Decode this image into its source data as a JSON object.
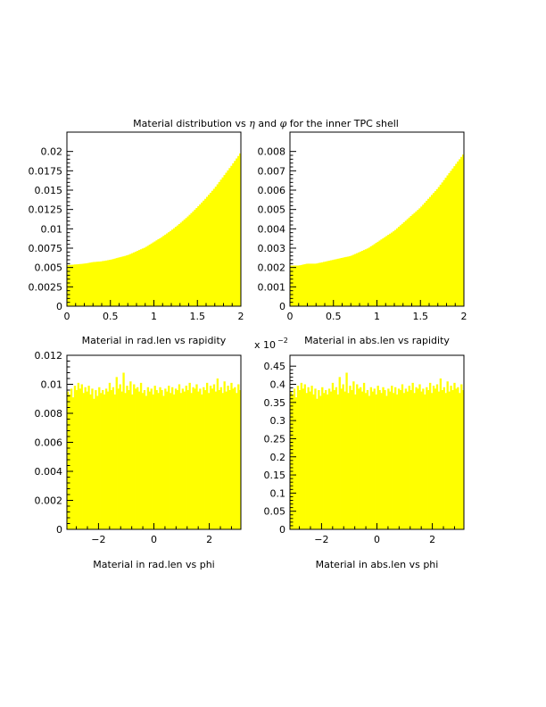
{
  "page": {
    "title_parts": [
      "Material distribution vs ",
      "η",
      " and ",
      "φ",
      " for the inner TPC shell"
    ]
  },
  "colors": {
    "fill": "#ffff00",
    "axis": "#000000",
    "background": "#ffffff"
  },
  "chart_data": [
    {
      "type": "area",
      "id": "radlen-rapidity",
      "xlabel": "Material in rad.len vs rapidity",
      "xlim": [
        0,
        2
      ],
      "ylim": [
        0,
        0.0225
      ],
      "x_ticks": [
        0,
        0.5,
        1,
        1.5,
        2
      ],
      "x_tick_labels": [
        "0",
        "0.5",
        "1",
        "1.5",
        "2"
      ],
      "y_ticks": [
        0,
        0.0025,
        0.005,
        0.0075,
        0.01,
        0.0125,
        0.015,
        0.0175,
        0.02
      ],
      "y_tick_labels": [
        "0",
        "0.0025",
        "0.005",
        "0.0075",
        "0.01",
        "0.0125",
        "0.015",
        "0.0175",
        "0.02"
      ],
      "x": [
        0,
        0.1,
        0.2,
        0.3,
        0.4,
        0.5,
        0.6,
        0.7,
        0.8,
        0.9,
        1.0,
        1.1,
        1.2,
        1.3,
        1.4,
        1.5,
        1.6,
        1.7,
        1.8,
        1.9,
        2.0
      ],
      "values": [
        0.0053,
        0.0054,
        0.0055,
        0.0057,
        0.0058,
        0.006,
        0.0063,
        0.0066,
        0.0071,
        0.0076,
        0.0083,
        0.009,
        0.0098,
        0.0107,
        0.0117,
        0.0128,
        0.014,
        0.0153,
        0.0168,
        0.0183,
        0.0199
      ],
      "exponent_label": ""
    },
    {
      "type": "area",
      "id": "abslen-rapidity",
      "xlabel": "Material in abs.len vs rapidity",
      "xlim": [
        0,
        2
      ],
      "ylim": [
        0,
        0.009
      ],
      "x_ticks": [
        0,
        0.5,
        1,
        1.5,
        2
      ],
      "x_tick_labels": [
        "0",
        "0.5",
        "1",
        "1.5",
        "2"
      ],
      "y_ticks": [
        0,
        0.001,
        0.002,
        0.003,
        0.004,
        0.005,
        0.006,
        0.007,
        0.008
      ],
      "y_tick_labels": [
        "0",
        "0.001",
        "0.002",
        "0.003",
        "0.004",
        "0.005",
        "0.006",
        "0.007",
        "0.008"
      ],
      "x": [
        0,
        0.1,
        0.2,
        0.3,
        0.4,
        0.5,
        0.6,
        0.7,
        0.8,
        0.9,
        1.0,
        1.1,
        1.2,
        1.3,
        1.4,
        1.5,
        1.6,
        1.7,
        1.8,
        1.9,
        2.0
      ],
      "values": [
        0.0021,
        0.0021,
        0.0022,
        0.0022,
        0.0023,
        0.0024,
        0.0025,
        0.0026,
        0.0028,
        0.003,
        0.0033,
        0.0036,
        0.0039,
        0.0043,
        0.0047,
        0.0051,
        0.0056,
        0.0061,
        0.0067,
        0.0073,
        0.0079
      ],
      "exponent_label": ""
    },
    {
      "type": "bar",
      "id": "radlen-phi",
      "xlabel": "Material in rad.len vs phi",
      "xlim": [
        -3.14,
        3.14
      ],
      "ylim": [
        0,
        0.012
      ],
      "x_ticks": [
        -2,
        0,
        2
      ],
      "x_tick_labels": [
        "−2",
        "0",
        "2"
      ],
      "y_ticks": [
        0,
        0.002,
        0.004,
        0.006,
        0.008,
        0.01,
        0.012
      ],
      "y_tick_labels": [
        "0",
        "0.002",
        "0.004",
        "0.006",
        "0.008",
        "0.01",
        "0.012"
      ],
      "values": [
        0.0095,
        0.0093,
        0.0097,
        0.0091,
        0.0099,
        0.0096,
        0.0101,
        0.0097,
        0.01,
        0.0094,
        0.0098,
        0.0095,
        0.0099,
        0.0093,
        0.0097,
        0.009,
        0.0096,
        0.0092,
        0.0098,
        0.0094,
        0.0096,
        0.0093,
        0.0097,
        0.0095,
        0.0101,
        0.0096,
        0.0098,
        0.0093,
        0.0105,
        0.0097,
        0.01,
        0.0095,
        0.0108,
        0.0094,
        0.0099,
        0.0096,
        0.0102,
        0.0093,
        0.01,
        0.0097,
        0.0098,
        0.0095,
        0.0101,
        0.0094,
        0.0096,
        0.0092,
        0.0098,
        0.0095,
        0.0097,
        0.0093,
        0.0099,
        0.0096,
        0.0094,
        0.0098,
        0.0096,
        0.0092,
        0.0097,
        0.0095,
        0.0099,
        0.0094,
        0.0098,
        0.0093,
        0.0097,
        0.0096,
        0.01,
        0.0094,
        0.0097,
        0.0095,
        0.0099,
        0.0096,
        0.0101,
        0.0094,
        0.0098,
        0.0097,
        0.01,
        0.0095,
        0.0097,
        0.0093,
        0.0098,
        0.0096,
        0.0101,
        0.0094,
        0.0099,
        0.0097,
        0.01,
        0.0095,
        0.0104,
        0.0096,
        0.0098,
        0.0094,
        0.0102,
        0.0095,
        0.0099,
        0.0096,
        0.0101,
        0.0097,
        0.0098,
        0.0094,
        0.01,
        0.0096
      ],
      "exponent_label": ""
    },
    {
      "type": "bar",
      "id": "abslen-phi",
      "xlabel": "Material in abs.len vs phi",
      "xlim": [
        -3.14,
        3.14
      ],
      "ylim": [
        0,
        0.48
      ],
      "x_ticks": [
        -2,
        0,
        2
      ],
      "x_tick_labels": [
        "−2",
        "0",
        "2"
      ],
      "y_ticks": [
        0,
        0.05,
        0.1,
        0.15,
        0.2,
        0.25,
        0.3,
        0.35,
        0.4,
        0.45
      ],
      "y_tick_labels": [
        "0",
        "0.05",
        "0.1",
        "0.15",
        "0.2",
        "0.25",
        "0.3",
        "0.35",
        "0.4",
        "0.45"
      ],
      "values": [
        0.38,
        0.372,
        0.388,
        0.364,
        0.396,
        0.384,
        0.404,
        0.388,
        0.4,
        0.376,
        0.392,
        0.38,
        0.396,
        0.372,
        0.388,
        0.36,
        0.384,
        0.368,
        0.392,
        0.376,
        0.384,
        0.372,
        0.388,
        0.38,
        0.404,
        0.384,
        0.392,
        0.372,
        0.42,
        0.388,
        0.4,
        0.38,
        0.432,
        0.376,
        0.396,
        0.384,
        0.408,
        0.372,
        0.4,
        0.388,
        0.392,
        0.38,
        0.404,
        0.376,
        0.384,
        0.368,
        0.392,
        0.38,
        0.388,
        0.372,
        0.396,
        0.384,
        0.376,
        0.392,
        0.384,
        0.368,
        0.388,
        0.38,
        0.396,
        0.376,
        0.392,
        0.372,
        0.388,
        0.384,
        0.4,
        0.376,
        0.388,
        0.38,
        0.396,
        0.384,
        0.404,
        0.376,
        0.392,
        0.388,
        0.4,
        0.38,
        0.388,
        0.372,
        0.392,
        0.384,
        0.404,
        0.376,
        0.396,
        0.388,
        0.4,
        0.38,
        0.416,
        0.384,
        0.392,
        0.376,
        0.408,
        0.38,
        0.396,
        0.384,
        0.404,
        0.388,
        0.392,
        0.376,
        0.4,
        0.384
      ],
      "exponent_label": "x 10",
      "exponent_power": "−2"
    }
  ]
}
